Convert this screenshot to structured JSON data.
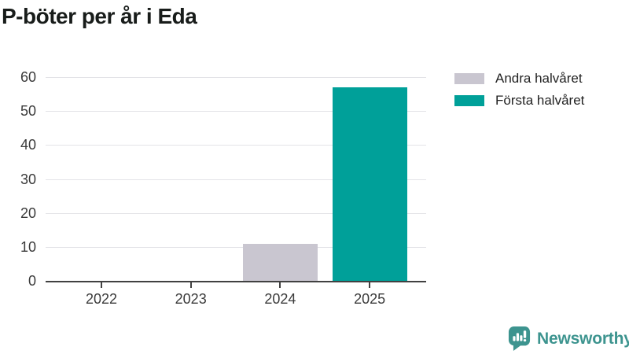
{
  "title": "P-böter per år i Eda",
  "colors": {
    "bar_gray": "#c9c6d0",
    "bar_teal": "#00a099",
    "grid": "#e3e3e7",
    "axis": "#414141",
    "tick_text": "#3a3a3a",
    "title_text": "#181c1a",
    "brand_teal": "#3d948f"
  },
  "legend": {
    "items": [
      {
        "label": "Andra halvåret",
        "color": "#c9c6d0"
      },
      {
        "label": "Första halvåret",
        "color": "#00a099"
      }
    ]
  },
  "chart_data": {
    "type": "bar",
    "title": "P-böter per år i Eda",
    "categories": [
      "2022",
      "2023",
      "2024",
      "2025"
    ],
    "series": [
      {
        "name": "Andra halvåret",
        "color": "#c9c6d0",
        "values": [
          null,
          null,
          11,
          null
        ]
      },
      {
        "name": "Första halvåret",
        "color": "#00a099",
        "values": [
          null,
          null,
          null,
          57
        ]
      }
    ],
    "xlabel": "",
    "ylabel": "",
    "ylim": [
      0,
      60
    ],
    "yticks": [
      0,
      10,
      20,
      30,
      40,
      50,
      60
    ],
    "grid": true,
    "legend_position": "top-right"
  },
  "branding": {
    "logo_text": "Newsworthy",
    "icon": "newsworthy-speech-bubble-bars-icon"
  }
}
